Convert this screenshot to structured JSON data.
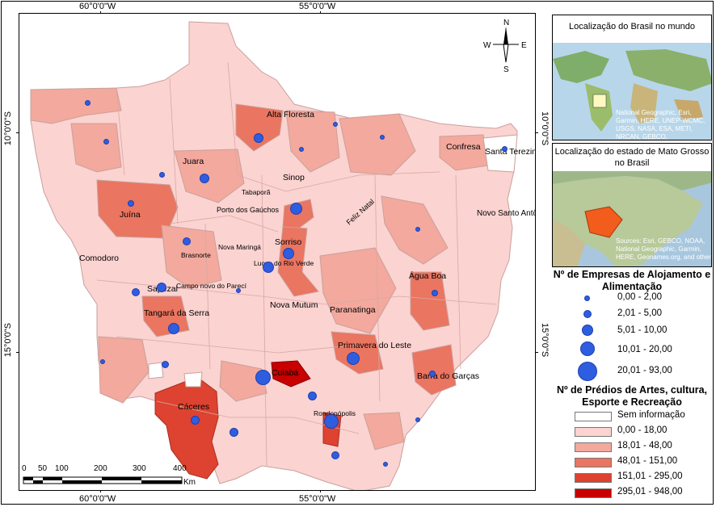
{
  "coords": {
    "top_left": "60°0'0\"W",
    "top_right": "55°0'0\"W",
    "bottom_left": "60°0'0\"W",
    "bottom_right": "55°0'0\"W",
    "left_top": "10°0'0\"S",
    "left_bottom": "15°0'0\"S",
    "right_top": "10°0'0\"S",
    "right_bottom": "15°0'0\"S"
  },
  "north_arrow": {
    "n": "N",
    "s": "S",
    "e": "E",
    "w": "W"
  },
  "scale_bar": {
    "ticks": [
      "0",
      "50",
      "100",
      "200",
      "300",
      "400"
    ],
    "unit": "Km"
  },
  "places": [
    "Alta Floresta",
    "Confresa",
    "Santa Terezinha",
    "Juara",
    "Sinop",
    "Tabaporã",
    "Juína",
    "Porto dos Gaúchos",
    "Feliz Natal",
    "Novo Santo Antônio",
    "Comodoro",
    "Brasnorte",
    "Nova Maringá",
    "Sorriso",
    "Lucas do Rio Verde",
    "Sapezal",
    "Campo novo do Parecí",
    "Nova Mutum",
    "Água Boa",
    "Paranatinga",
    "Tangará da Serra",
    "Primavera do Leste",
    "Cuiabá",
    "Barra do Garças",
    "Cáceres",
    "Rondonópolis"
  ],
  "inset_world": {
    "title": "Localização do Brasil no mundo",
    "credit": "National Geographic, Esri, Garmin, HERE, UNEP-WCMC, USGS, NASA, ESA, METI, NRCAN, GEBCO,"
  },
  "inset_brazil": {
    "title": "Localização do estado de Mato Grosso no Brasil",
    "credit": "Sources: Esri, GEBCO, NOAA, National Geographic, Garmin, HERE, Geonames.org, and other"
  },
  "legend_companies": {
    "title": "Nº de Empresas de Alojamento e Alimentação",
    "classes": [
      "0,00 - 2,00",
      "2,01 - 5,00",
      "5,01 - 10,00",
      "10,01 - 20,00",
      "20,01 - 93,00"
    ],
    "color": "#2e5de0"
  },
  "legend_buildings": {
    "title": "Nº de Prédios de Artes, cultura, Esporte e Recreação",
    "classes": [
      {
        "label": "Sem informação",
        "color": "#ffffff"
      },
      {
        "label": "0,00 - 18,00",
        "color": "#fbd3d1"
      },
      {
        "label": "18,01 - 48,00",
        "color": "#f3a99d"
      },
      {
        "label": "48,01 - 151,00",
        "color": "#ea7560"
      },
      {
        "label": "151,01 - 295,00",
        "color": "#dd4330"
      },
      {
        "label": "295,01 - 948,00",
        "color": "#c80000"
      }
    ]
  }
}
